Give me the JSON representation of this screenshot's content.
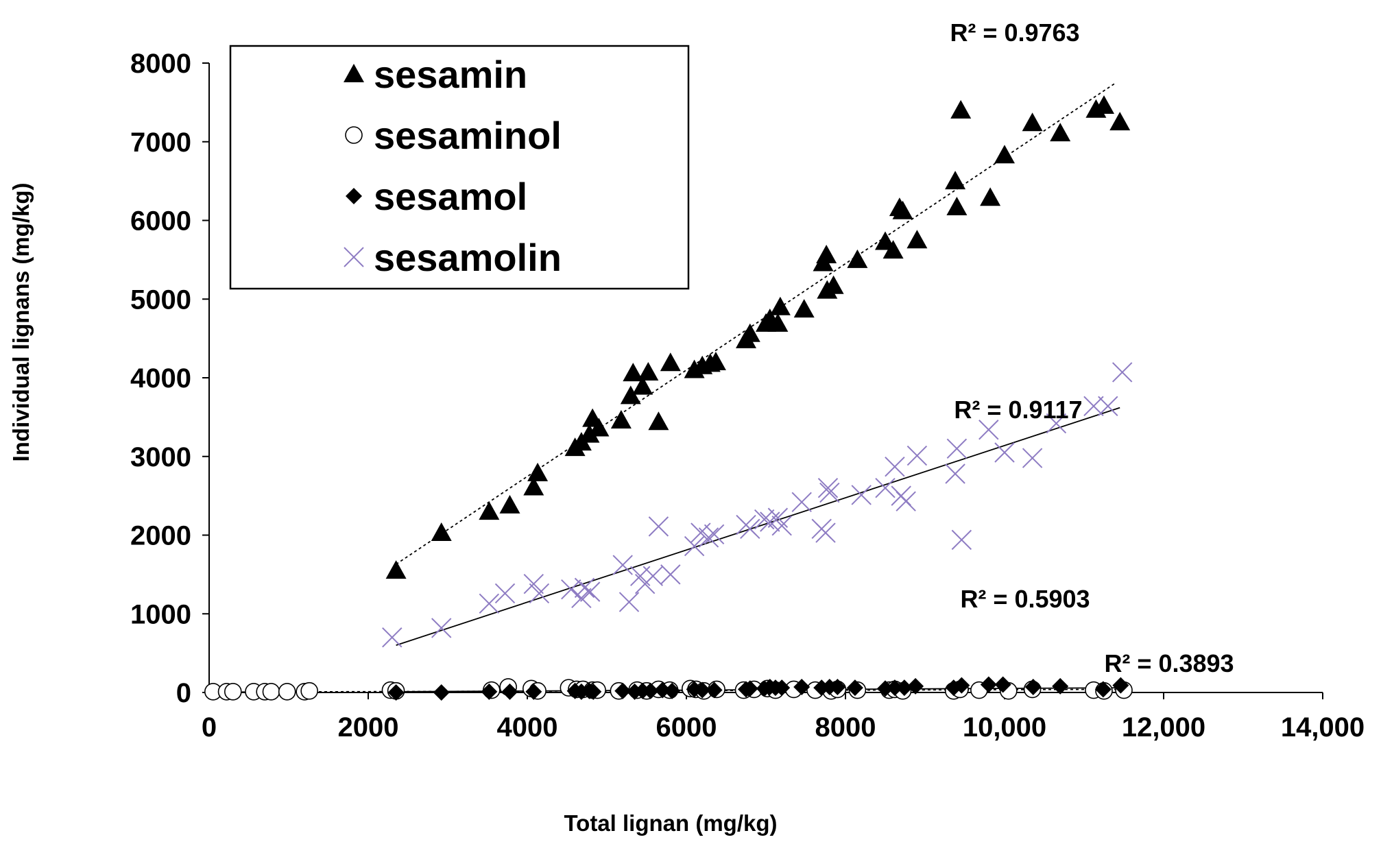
{
  "chart_data": {
    "type": "scatter",
    "title": "",
    "xlabel": "Total lignan  (mg/kg)",
    "ylabel": "Individual lignans (mg/kg)",
    "xlim": [
      0,
      14000
    ],
    "ylim": [
      0,
      8000
    ],
    "x_ticks": [
      0,
      2000,
      4000,
      6000,
      8000,
      10000,
      12000,
      14000
    ],
    "x_tick_labels": [
      "0",
      "2000",
      "4000",
      "6000",
      "8000",
      "10,000",
      "12,000",
      "14,000"
    ],
    "y_ticks": [
      0,
      1000,
      2000,
      3000,
      4000,
      5000,
      6000,
      7000,
      8000
    ],
    "y_tick_labels": [
      "0",
      "1000",
      "2000",
      "3000",
      "4000",
      "5000",
      "6000",
      "7000",
      "8000"
    ],
    "grid": false,
    "legend_position": "top-left",
    "series": [
      {
        "name": "sesamin",
        "marker": "triangle",
        "color": "#000000",
        "trendline_style": "dotted",
        "trendline": [
          [
            2350,
            1630
          ],
          [
            11400,
            7750
          ]
        ],
        "r2_label": "R² = 0.9763",
        "x": [
          2350,
          2920,
          3520,
          3780,
          4080,
          4130,
          4600,
          4680,
          4780,
          4820,
          4900,
          5180,
          5300,
          5330,
          5450,
          5520,
          5650,
          5800,
          6100,
          6200,
          6300,
          6370,
          6750,
          6800,
          7000,
          7050,
          7150,
          7180,
          7480,
          7720,
          7760,
          7770,
          7850,
          8150,
          8500,
          8600,
          8680,
          8720,
          8900,
          9380,
          9400,
          9450,
          9820,
          10000,
          10350,
          10700,
          11150,
          11250,
          11450
        ],
        "y": [
          1550,
          2030,
          2300,
          2380,
          2610,
          2790,
          3110,
          3180,
          3280,
          3480,
          3360,
          3460,
          3770,
          4060,
          3890,
          4070,
          3440,
          4190,
          4100,
          4150,
          4180,
          4200,
          4480,
          4560,
          4690,
          4750,
          4690,
          4900,
          4870,
          5460,
          5560,
          5110,
          5170,
          5500,
          5730,
          5620,
          6160,
          6120,
          5750,
          6500,
          6170,
          7400,
          6290,
          6830,
          7240,
          7110,
          7410,
          7460,
          7250
        ]
      },
      {
        "name": "sesaminol",
        "marker": "circle-open",
        "color": "#000000",
        "trendline_style": "dotted",
        "trendline": [
          [
            0,
            5
          ],
          [
            11500,
            40
          ]
        ],
        "r2_label": "R² = 0.3893",
        "x": [
          50,
          220,
          300,
          560,
          700,
          780,
          980,
          1200,
          1260,
          2280,
          2350,
          3550,
          3760,
          4050,
          4130,
          4520,
          4620,
          4700,
          4820,
          4880,
          5150,
          5380,
          5500,
          5650,
          5790,
          6050,
          6120,
          6220,
          6380,
          6720,
          6850,
          7020,
          7120,
          7350,
          7620,
          7820,
          7900,
          8150,
          8550,
          8620,
          8720,
          9360,
          9440,
          9680,
          10050,
          10350,
          11120,
          11250,
          11500
        ],
        "y": [
          10,
          10,
          10,
          10,
          10,
          10,
          10,
          10,
          20,
          30,
          20,
          30,
          70,
          50,
          20,
          60,
          40,
          40,
          30,
          30,
          20,
          30,
          20,
          40,
          30,
          50,
          40,
          20,
          40,
          30,
          40,
          50,
          30,
          40,
          30,
          20,
          40,
          30,
          30,
          40,
          20,
          20,
          40,
          30,
          20,
          40,
          30,
          20,
          30
        ]
      },
      {
        "name": "sesamol",
        "marker": "diamond",
        "color": "#000000",
        "trendline_style": "solid",
        "trendline": [
          [
            2350,
            10
          ],
          [
            11500,
            60
          ]
        ],
        "r2_label": "R² = 0.5903",
        "x": [
          2350,
          2920,
          3520,
          3780,
          4080,
          4600,
          4680,
          4780,
          4830,
          5200,
          5350,
          5450,
          5550,
          5700,
          5820,
          6100,
          6200,
          6350,
          6750,
          6800,
          6980,
          7050,
          7120,
          7200,
          7450,
          7700,
          7800,
          7900,
          8120,
          8500,
          8620,
          8740,
          8880,
          9360,
          9460,
          9800,
          9980,
          10360,
          10700,
          11240,
          11460
        ],
        "y": [
          0,
          0,
          10,
          10,
          10,
          20,
          10,
          20,
          10,
          20,
          10,
          20,
          20,
          30,
          20,
          40,
          30,
          30,
          40,
          50,
          50,
          70,
          60,
          60,
          70,
          60,
          70,
          70,
          60,
          50,
          60,
          60,
          80,
          60,
          90,
          100,
          100,
          70,
          80,
          40,
          90
        ]
      },
      {
        "name": "sesamolin",
        "marker": "x",
        "color": "#8e7cc3",
        "trendline_style": "solid",
        "trendline": [
          [
            2350,
            600
          ],
          [
            11450,
            3620
          ]
        ],
        "r2_label": "R² = 0.9117",
        "x": [
          2300,
          2920,
          3520,
          3720,
          4080,
          4150,
          4550,
          4680,
          4720,
          4790,
          5200,
          5280,
          5420,
          5480,
          5580,
          5650,
          5800,
          6100,
          6180,
          6280,
          6350,
          6750,
          6800,
          6980,
          7050,
          7150,
          7200,
          7450,
          7700,
          7750,
          7780,
          7800,
          8200,
          8500,
          8620,
          8700,
          8760,
          8900,
          9380,
          9400,
          9460,
          9800,
          10000,
          10350,
          10650,
          11120,
          11300,
          11480
        ],
        "y": [
          700,
          820,
          1130,
          1260,
          1380,
          1260,
          1310,
          1200,
          1330,
          1280,
          1620,
          1150,
          1480,
          1380,
          1480,
          2110,
          1500,
          1860,
          2030,
          1970,
          2010,
          2130,
          2080,
          2200,
          2170,
          2220,
          2120,
          2420,
          2080,
          2030,
          2600,
          2540,
          2510,
          2600,
          2870,
          2500,
          2430,
          3010,
          2780,
          3100,
          1940,
          3340,
          3050,
          2980,
          3420,
          3640,
          3640,
          4070
        ]
      }
    ]
  }
}
